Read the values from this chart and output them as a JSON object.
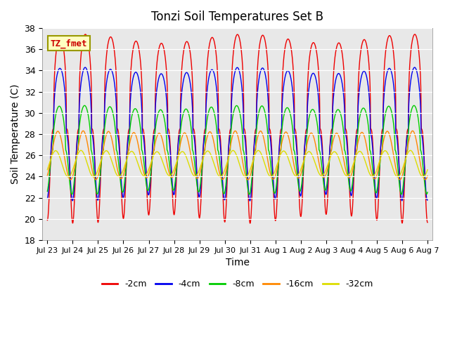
{
  "title": "Tonzi Soil Temperatures Set B",
  "xlabel": "Time",
  "ylabel": "Soil Temperature (C)",
  "ylim": [
    18,
    38
  ],
  "x_tick_labels": [
    "Jul 23",
    "Jul 24",
    "Jul 25",
    "Jul 26",
    "Jul 27",
    "Jul 28",
    "Jul 29",
    "Jul 30",
    "Jul 31",
    "Aug 1",
    "Aug 2",
    "Aug 3",
    "Aug 4",
    "Aug 5",
    "Aug 6",
    "Aug 7"
  ],
  "label_box_text": "TZ_fmet",
  "label_box_facecolor": "#FFFFC0",
  "label_box_edgecolor": "#999900",
  "label_box_textcolor": "#CC0000",
  "bg_color": "#E8E8E8",
  "fig_bg_color": "#FFFFFF",
  "series": [
    {
      "label": "-2cm",
      "color": "#EE0000",
      "amplitude": 8.5,
      "phase": 0.0,
      "mean": 28.5,
      "sharpness": 3.0
    },
    {
      "label": "-4cm",
      "color": "#0000EE",
      "amplitude": 6.0,
      "phase": 0.05,
      "mean": 28.0,
      "sharpness": 2.5
    },
    {
      "label": "-8cm",
      "color": "#00CC00",
      "amplitude": 4.0,
      "phase": 0.2,
      "mean": 26.5,
      "sharpness": 2.0
    },
    {
      "label": "-16cm",
      "color": "#FF8800",
      "amplitude": 2.2,
      "phase": 0.55,
      "mean": 26.0,
      "sharpness": 1.0
    },
    {
      "label": "-32cm",
      "color": "#DDDD00",
      "amplitude": 1.2,
      "phase": 1.1,
      "mean": 25.2,
      "sharpness": 1.0
    }
  ],
  "points_per_day": 200,
  "num_days": 15
}
